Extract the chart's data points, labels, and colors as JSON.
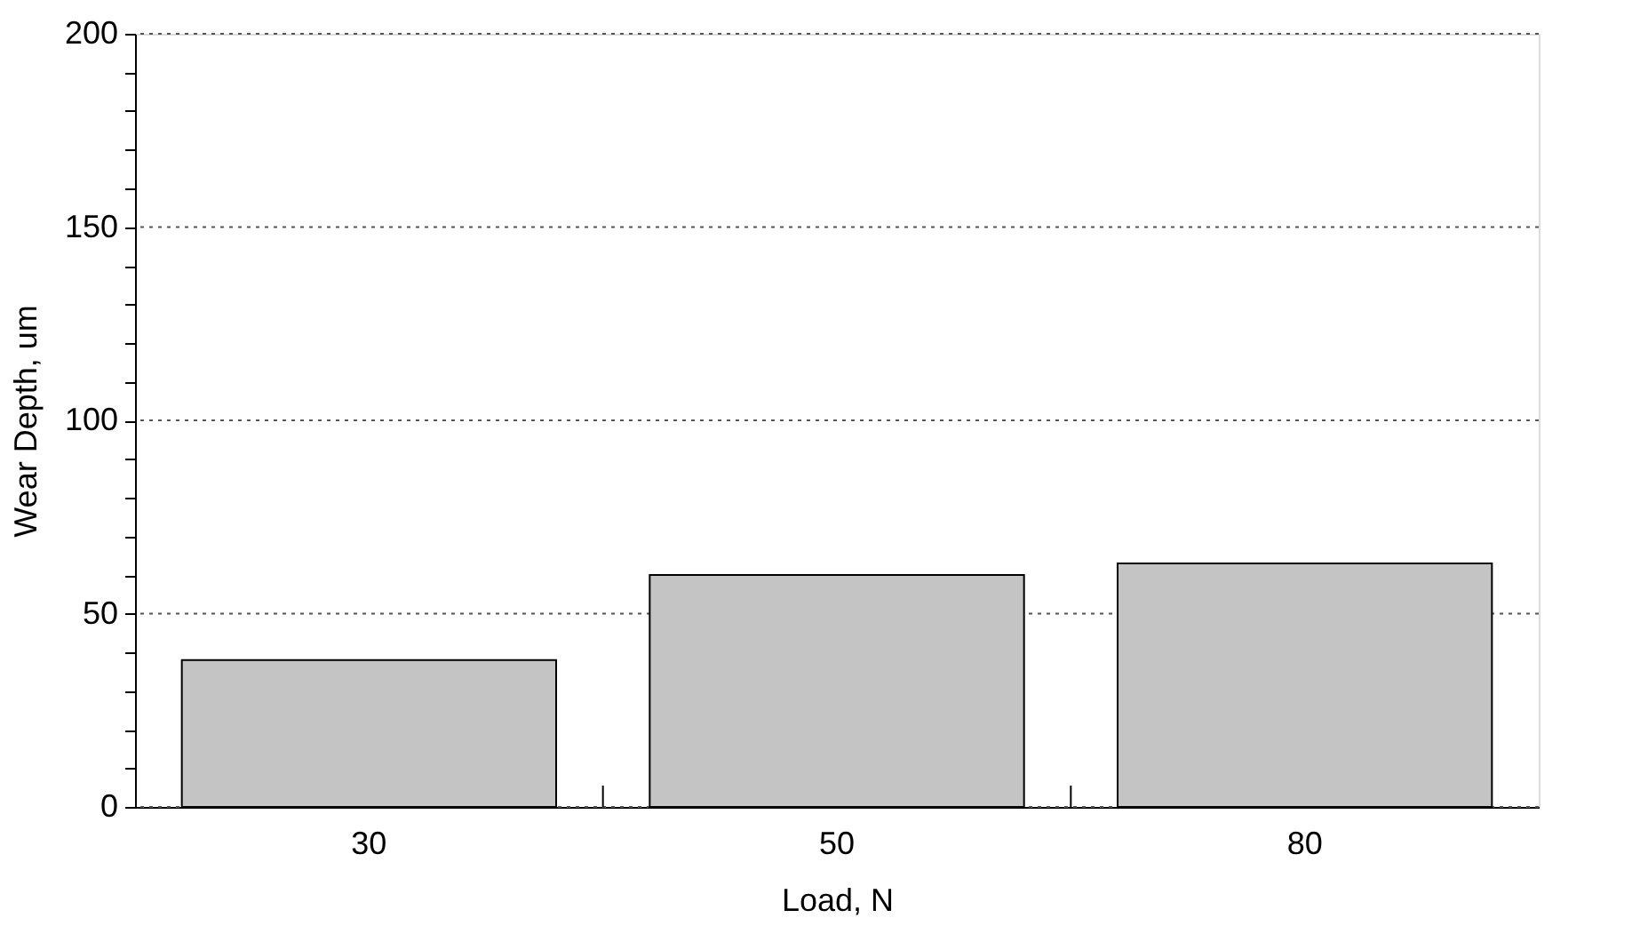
{
  "chart_data": {
    "type": "bar",
    "xlabel": "Load, N",
    "ylabel": "Wear Depth, um",
    "categories": [
      "30",
      "50",
      "80"
    ],
    "values": [
      38,
      60,
      63
    ],
    "color": "#c4c4c4",
    "ylim": [
      0,
      200
    ],
    "yticks": [
      0,
      {
        "value": 10,
        "label": null
      },
      {
        "value": 20,
        "label": null
      },
      {
        "value": 30,
        "label": null
      },
      {
        "value": 40,
        "label": null
      },
      50,
      {
        "value": 60,
        "label": null
      },
      {
        "value": 70,
        "label": null
      },
      {
        "value": 80,
        "label": null
      },
      {
        "value": 90,
        "label": null
      },
      100,
      {
        "value": 110,
        "label": null
      },
      {
        "value": 120,
        "label": null
      },
      {
        "value": 130,
        "label": null
      },
      {
        "value": 140,
        "label": null
      },
      150,
      {
        "value": 160,
        "label": null
      },
      {
        "value": 170,
        "label": null
      },
      {
        "value": 180,
        "label": null
      },
      {
        "value": 190,
        "label": null
      },
      200
    ],
    "grid": "y"
  }
}
